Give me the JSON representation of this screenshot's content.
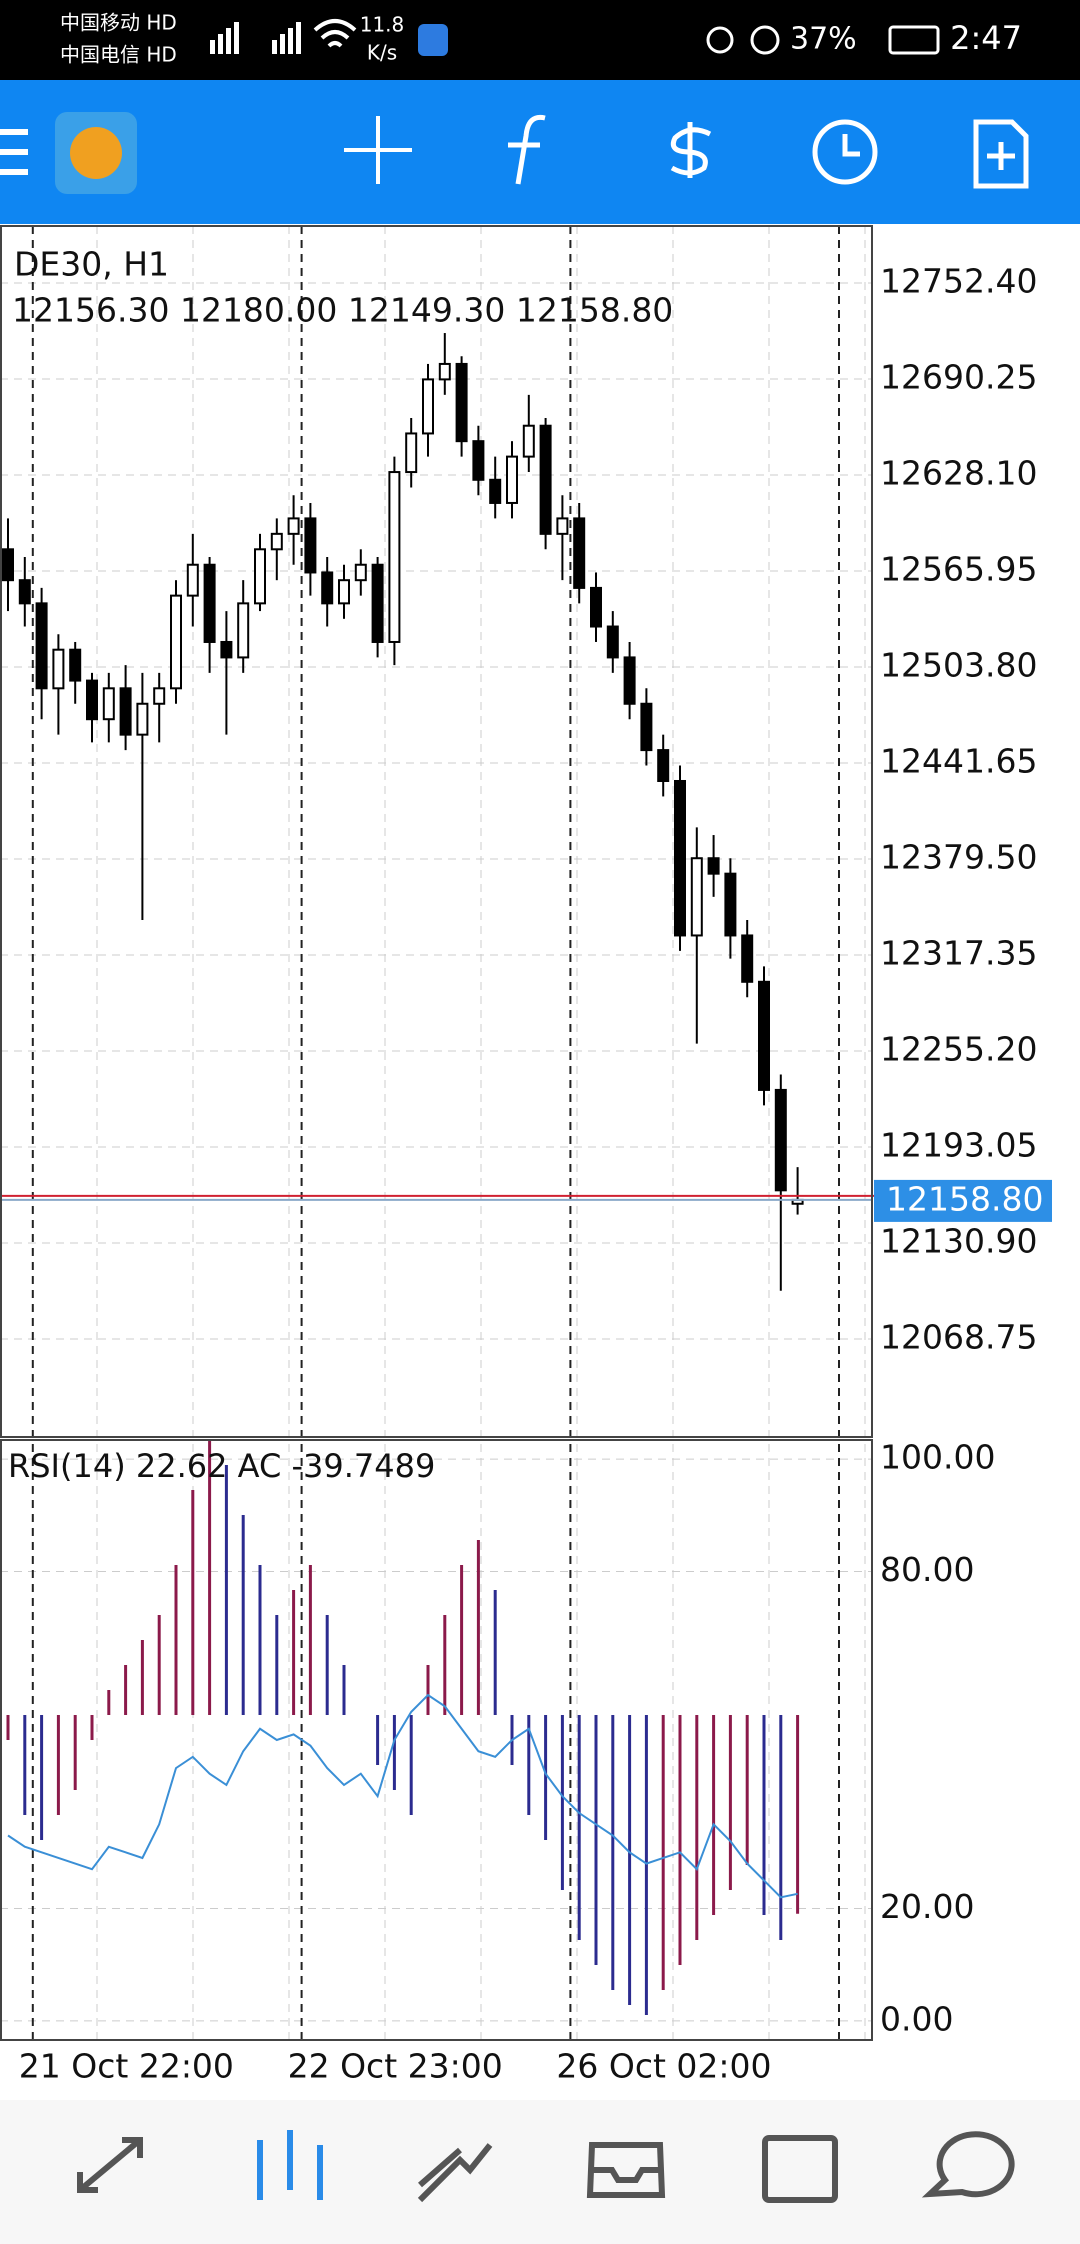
{
  "status_bar": {
    "carrier1": "中国移动 HD",
    "carrier2": "中国电信 HD",
    "speed": "11.8",
    "speed_unit": "K/s",
    "battery": "37%",
    "time": "2:47"
  },
  "chart_data": {
    "type": "candlestick",
    "title": "DE30, H1",
    "ohlc_label": "12156.30 12180.00 12149.30 12158.80",
    "ylim": [
      12005.3,
      12789.3
    ],
    "yticks": [
      {
        "value": 12752.4,
        "label": "12752.40"
      },
      12690.25,
      {
        "value": 12628.1,
        "label": "12628.10"
      },
      12565.95,
      {
        "value": 12503.8,
        "label": "12503.80"
      },
      12441.65,
      {
        "value": 12379.5,
        "label": "12379.50"
      },
      12317.35,
      {
        "value": 12255.2,
        "label": "12255.20"
      },
      12193.05,
      {
        "value": 12130.9,
        "label": "12130.90"
      },
      12068.75
    ],
    "current_price": {
      "value": 12158.8,
      "label": "12158.80"
    },
    "categories": [
      null,
      "21 Oct 22:00",
      null,
      null,
      null,
      null,
      null,
      null,
      null,
      null,
      null,
      null,
      null,
      null,
      null,
      null,
      null,
      "22 Oct 23:00",
      null,
      null,
      null,
      null,
      null,
      null,
      null,
      null,
      null,
      null,
      null,
      null,
      null,
      null,
      null,
      "26 Oct 02:00",
      null,
      null,
      null,
      null,
      null,
      null,
      null,
      null,
      null,
      null,
      null,
      null,
      null,
      null
    ],
    "candles": [
      [
        12580,
        12600,
        12540,
        12560
      ],
      [
        12560,
        12575,
        12530,
        12545
      ],
      [
        12545,
        12555,
        12470,
        12490
      ],
      [
        12490,
        12525,
        12460,
        12515
      ],
      [
        12515,
        12520,
        12480,
        12495
      ],
      [
        12495,
        12500,
        12455,
        12470
      ],
      [
        12470,
        12500,
        12455,
        12490
      ],
      [
        12490,
        12505,
        12450,
        12460
      ],
      [
        12460,
        12500,
        12340,
        12480
      ],
      [
        12480,
        12500,
        12455,
        12490
      ],
      [
        12490,
        12560,
        12480,
        12550
      ],
      [
        12550,
        12590,
        12530,
        12570
      ],
      [
        12570,
        12575,
        12500,
        12520
      ],
      [
        12520,
        12540,
        12460,
        12510
      ],
      [
        12510,
        12560,
        12500,
        12545
      ],
      [
        12545,
        12590,
        12540,
        12580
      ],
      [
        12580,
        12600,
        12560,
        12590
      ],
      [
        12590,
        12615,
        12570,
        12600
      ],
      [
        12600,
        12610,
        12550,
        12565
      ],
      [
        12565,
        12575,
        12530,
        12545
      ],
      [
        12545,
        12570,
        12535,
        12560
      ],
      [
        12560,
        12580,
        12550,
        12570
      ],
      [
        12570,
        12575,
        12510,
        12520
      ],
      [
        12520,
        12640,
        12505,
        12630
      ],
      [
        12630,
        12665,
        12620,
        12655
      ],
      [
        12655,
        12700,
        12640,
        12690
      ],
      [
        12690,
        12720,
        12680,
        12700
      ],
      [
        12700,
        12705,
        12640,
        12650
      ],
      [
        12650,
        12660,
        12615,
        12625
      ],
      [
        12625,
        12640,
        12600,
        12610
      ],
      [
        12610,
        12650,
        12600,
        12640
      ],
      [
        12640,
        12680,
        12630,
        12660
      ],
      [
        12660,
        12665,
        12580,
        12590
      ],
      [
        12590,
        12615,
        12560,
        12600
      ],
      [
        12600,
        12610,
        12545,
        12555
      ],
      [
        12555,
        12565,
        12520,
        12530
      ],
      [
        12530,
        12540,
        12500,
        12510
      ],
      [
        12510,
        12520,
        12470,
        12480
      ],
      [
        12480,
        12490,
        12440,
        12450
      ],
      [
        12450,
        12460,
        12420,
        12430
      ],
      [
        12430,
        12440,
        12320,
        12330
      ],
      [
        12330,
        12400,
        12260,
        12380
      ],
      [
        12380,
        12395,
        12355,
        12370
      ],
      [
        12370,
        12380,
        12315,
        12330
      ],
      [
        12330,
        12340,
        12290,
        12300
      ],
      [
        12300,
        12310,
        12220,
        12230
      ],
      [
        12230,
        12240,
        12100,
        12165
      ],
      [
        12156.3,
        12180,
        12149.3,
        12158.8
      ]
    ],
    "indicator": {
      "label": "RSI(14) 22.62 AC -39.7489",
      "ylim": [
        -3.4,
        103.4
      ],
      "yticks": [
        {
          "value": 100,
          "label": "100.00"
        },
        {
          "value": 80,
          "label": "80.00"
        },
        {
          "value": 20,
          "label": "20.00"
        },
        {
          "value": 0,
          "label": "0.00"
        }
      ],
      "rsi_color": "#3a8fd6",
      "ac_up_color": "#8b1a4a",
      "ac_down_color": "#2b2b8f",
      "aclim": [
        -65,
        55
      ],
      "rsi": [
        33,
        31,
        30,
        29,
        28,
        27,
        31,
        30,
        29,
        35,
        45,
        47,
        44,
        42,
        48,
        52,
        50,
        51,
        49,
        45,
        42,
        44,
        40,
        50,
        55,
        58,
        56,
        52,
        48,
        47,
        50,
        52,
        44,
        40,
        37,
        35,
        33,
        30,
        28,
        29,
        30,
        27,
        35,
        32,
        28,
        25,
        22,
        22.62
      ],
      "ac": [
        -5,
        -20,
        -25,
        -20,
        -15,
        -5,
        5,
        10,
        15,
        20,
        30,
        45,
        55,
        50,
        40,
        30,
        20,
        25,
        30,
        20,
        10,
        0,
        -10,
        -15,
        -20,
        10,
        20,
        30,
        35,
        25,
        -10,
        -20,
        -25,
        -35,
        -45,
        -50,
        -55,
        -58,
        -60,
        -55,
        -50,
        -45,
        -40,
        -35,
        -30,
        -40,
        -45,
        -39.7489
      ]
    }
  }
}
